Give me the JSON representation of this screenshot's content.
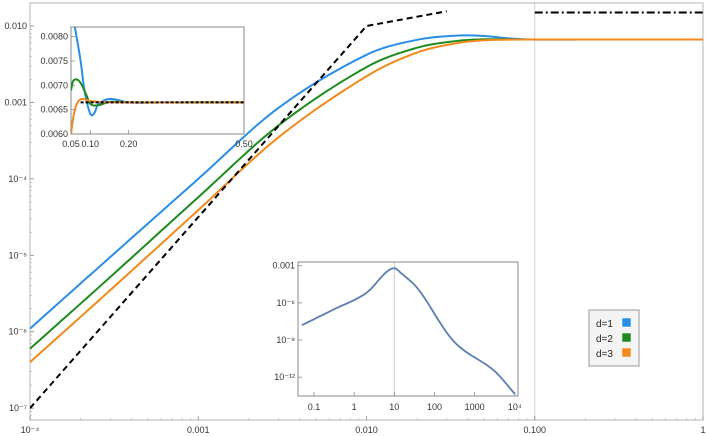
{
  "chart_data": [
    {
      "type": "line",
      "title": "",
      "x_scale": "log",
      "y_scale": "log",
      "xlim": [
        0.0001,
        1
      ],
      "ylim": [
        7e-08,
        0.02
      ],
      "x_ticks": [
        {
          "value": 0.0001,
          "label": "10⁻⁴"
        },
        {
          "value": 0.001,
          "label": "0.001"
        },
        {
          "value": 0.01,
          "label": "0.010"
        },
        {
          "value": 0.1,
          "label": "0.100"
        },
        {
          "value": 1,
          "label": "1"
        }
      ],
      "y_ticks": [
        {
          "value": 1e-07,
          "label": "10⁻⁷"
        },
        {
          "value": 1e-06,
          "label": "10⁻⁶"
        },
        {
          "value": 1e-05,
          "label": "10⁻⁵"
        },
        {
          "value": 0.0001,
          "label": "10⁻⁴"
        },
        {
          "value": 0.001,
          "label": "0.001"
        },
        {
          "value": 0.01,
          "label": "0.010"
        }
      ],
      "vertical_gridline_x": 0.1,
      "series": [
        {
          "name": "d=1",
          "color": "#2a8ee6",
          "style": "solid",
          "x": [
            0.0001,
            0.0003,
            0.001,
            0.003,
            0.01,
            0.02,
            0.035,
            0.05,
            0.07,
            0.1,
            0.2,
            0.5,
            1
          ],
          "y": [
            1.1e-06,
            9.5e-06,
            0.0001,
            0.00085,
            0.0042,
            0.0066,
            0.0075,
            0.0074,
            0.0069,
            0.00665,
            0.00665,
            0.00665,
            0.00665
          ]
        },
        {
          "name": "d=2",
          "color": "#1f8a1f",
          "style": "solid",
          "x": [
            0.0001,
            0.0003,
            0.001,
            0.003,
            0.01,
            0.02,
            0.035,
            0.05,
            0.07,
            0.1,
            0.2,
            0.5,
            1
          ],
          "y": [
            6e-07,
            5.2e-06,
            5.75e-05,
            0.0005,
            0.0029,
            0.0052,
            0.0064,
            0.0067,
            0.00668,
            0.00665,
            0.00665,
            0.00665,
            0.00665
          ]
        },
        {
          "name": "d=3",
          "color": "#f2891a",
          "style": "solid",
          "x": [
            0.0001,
            0.0003,
            0.001,
            0.003,
            0.01,
            0.02,
            0.035,
            0.05,
            0.07,
            0.1,
            0.2,
            0.5,
            1
          ],
          "y": [
            4e-07,
            3.5e-06,
            3.9e-05,
            0.00035,
            0.0022,
            0.0045,
            0.006,
            0.0065,
            0.00663,
            0.00665,
            0.00665,
            0.00665,
            0.00665
          ]
        },
        {
          "name": "asymptote",
          "color": "#000000",
          "style": "dashed",
          "x": [
            0.0001,
            0.001,
            0.01,
            0.03
          ],
          "y": [
            1e-07,
            3.16e-05,
            0.01,
            0.0156
          ]
        },
        {
          "name": "limit",
          "color": "#000000",
          "style": "dashdot",
          "x": [
            0.1,
            1
          ],
          "y": [
            0.015,
            0.015
          ]
        }
      ],
      "legend": {
        "position": "right",
        "entries": [
          {
            "label": "d=1",
            "color": "#2a8ee6"
          },
          {
            "label": "d=2",
            "color": "#1f8a1f"
          },
          {
            "label": "d=3",
            "color": "#f2891a"
          }
        ]
      }
    },
    {
      "type": "line",
      "title": "",
      "x_scale": "linear",
      "y_scale": "linear",
      "xlim": [
        0.05,
        0.5
      ],
      "ylim": [
        0.006,
        0.0082
      ],
      "x_ticks": [
        {
          "value": 0.05,
          "label": "0.05"
        },
        {
          "value": 0.1,
          "label": "0.10"
        },
        {
          "value": 0.2,
          "label": "0.20"
        },
        {
          "value": 0.5,
          "label": "0.50"
        }
      ],
      "y_ticks": [
        {
          "value": 0.006,
          "label": "0.0060"
        },
        {
          "value": 0.0065,
          "label": "0.0065"
        },
        {
          "value": 0.007,
          "label": "0.0070"
        },
        {
          "value": 0.0075,
          "label": "0.0075"
        },
        {
          "value": 0.008,
          "label": "0.0080"
        }
      ],
      "series": [
        {
          "name": "d=1",
          "color": "#2a8ee6",
          "style": "solid",
          "x": [
            0.06,
            0.075,
            0.085,
            0.1,
            0.11,
            0.12,
            0.15,
            0.2,
            0.3,
            0.5
          ],
          "y": [
            0.0082,
            0.0075,
            0.0069,
            0.00642,
            0.00642,
            0.0066,
            0.00672,
            0.00665,
            0.00665,
            0.00665
          ]
        },
        {
          "name": "d=2",
          "color": "#1f8a1f",
          "style": "solid",
          "x": [
            0.05,
            0.055,
            0.065,
            0.075,
            0.09,
            0.1,
            0.12,
            0.15,
            0.2,
            0.5
          ],
          "y": [
            0.0069,
            0.00708,
            0.00712,
            0.00705,
            0.0068,
            0.00662,
            0.00659,
            0.00666,
            0.00665,
            0.00665
          ]
        },
        {
          "name": "d=3",
          "color": "#f2891a",
          "style": "solid",
          "x": [
            0.05,
            0.055,
            0.062,
            0.07,
            0.08,
            0.09,
            0.1,
            0.12,
            0.15,
            0.5
          ],
          "y": [
            0.006,
            0.0063,
            0.00655,
            0.00668,
            0.00672,
            0.0067,
            0.00668,
            0.00666,
            0.00665,
            0.00665
          ]
        },
        {
          "name": "limit",
          "color": "#000000",
          "style": "dotted",
          "x": [
            0.075,
            0.5
          ],
          "y": [
            0.00665,
            0.00665
          ]
        }
      ]
    },
    {
      "type": "line",
      "title": "",
      "x_scale": "log",
      "y_scale": "log",
      "xlim": [
        0.04,
        12000
      ],
      "ylim": [
        3e-14,
        0.002
      ],
      "x_ticks": [
        {
          "value": 0.1,
          "label": "0.1"
        },
        {
          "value": 1,
          "label": "1"
        },
        {
          "value": 10,
          "label": "10"
        },
        {
          "value": 100,
          "label": "100"
        },
        {
          "value": 1000,
          "label": "1000"
        },
        {
          "value": 10000,
          "label": "10⁴"
        }
      ],
      "y_ticks": [
        {
          "value": 1e-12,
          "label": "10⁻¹²"
        },
        {
          "value": 1e-09,
          "label": "10⁻⁹"
        },
        {
          "value": 1e-06,
          "label": "10⁻⁶"
        },
        {
          "value": 0.001,
          "label": "0.001"
        }
      ],
      "vertical_gridline_x": 10,
      "series": [
        {
          "name": "curve",
          "color": "#5b7fb0",
          "style": "solid",
          "x": [
            0.05,
            0.3,
            2,
            6,
            10,
            15,
            40,
            300,
            3000,
            10000
          ],
          "y": [
            1.58e-08,
            2.8e-07,
            6.3e-06,
            0.00026,
            0.00063,
            0.00024,
            1.2e-05,
            8e-10,
            3.5e-12,
            4.5e-14
          ]
        }
      ]
    }
  ]
}
